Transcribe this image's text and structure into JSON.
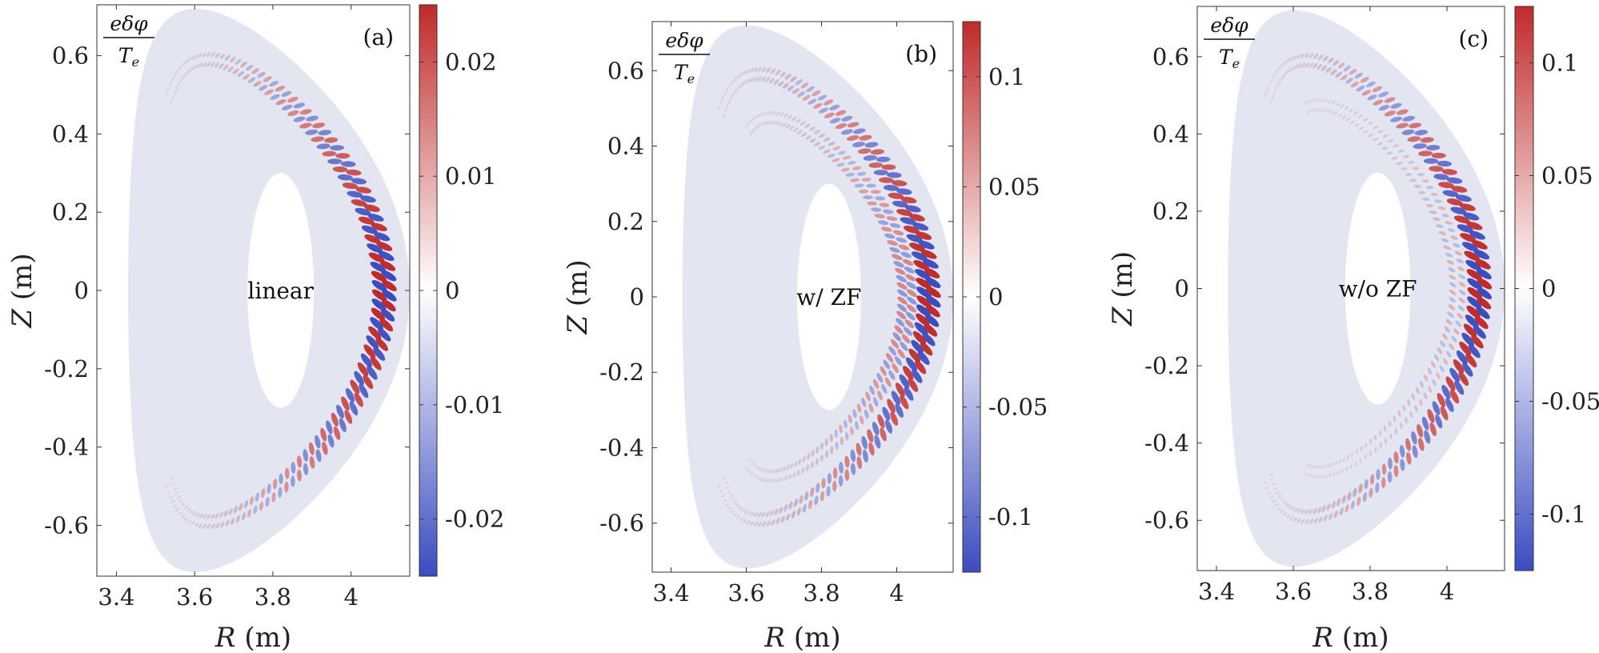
{
  "chart_data": [
    {
      "type": "heatmap",
      "panel": "(a)",
      "case_label": "linear",
      "quantity": {
        "numerator": "eδφ",
        "denominator": "T",
        "denominator_sub": "e"
      },
      "xlabel": {
        "var": "R",
        "unit": "(m)"
      },
      "ylabel": {
        "var": "Z",
        "unit": "(m)"
      },
      "xlim": [
        3.35,
        4.15
      ],
      "ylim": [
        -0.73,
        0.73
      ],
      "xticks": [
        3.4,
        3.6,
        3.8,
        4.0
      ],
      "xtick_labels": [
        "3.4",
        "3.6",
        "3.8",
        "4"
      ],
      "yticks": [
        0.6,
        0.4,
        0.2,
        0.0,
        -0.2,
        -0.4,
        -0.6
      ],
      "ytick_labels": [
        "0.6",
        "0.4",
        "0.2",
        "0",
        "-0.2",
        "-0.4",
        "-0.6"
      ],
      "colorbar": {
        "range": [
          -0.025,
          0.025
        ],
        "ticks": [
          0.02,
          0.01,
          0.0,
          -0.01,
          -0.02
        ],
        "tick_labels": [
          "0.02",
          "0.01",
          "0",
          "-0.01",
          "-0.02"
        ]
      },
      "colormap": {
        "negative": "#3b4cc0",
        "zero": "#ffffff",
        "positive": "#c02a2a",
        "background": "#e3e5f0"
      },
      "mode_structure": {
        "amplitude": 1.0,
        "inner_ring": 0.0
      }
    },
    {
      "type": "heatmap",
      "panel": "(b)",
      "case_label": "w/ ZF",
      "quantity": {
        "numerator": "eδφ",
        "denominator": "T",
        "denominator_sub": "e"
      },
      "xlabel": {
        "var": "R",
        "unit": "(m)"
      },
      "ylabel": {
        "var": "Z",
        "unit": "(m)"
      },
      "xlim": [
        3.35,
        4.15
      ],
      "ylim": [
        -0.73,
        0.73
      ],
      "xticks": [
        3.4,
        3.6,
        3.8,
        4.0
      ],
      "xtick_labels": [
        "3.4",
        "3.6",
        "3.8",
        "4"
      ],
      "yticks": [
        0.6,
        0.4,
        0.2,
        0.0,
        -0.2,
        -0.4,
        -0.6
      ],
      "ytick_labels": [
        "0.6",
        "0.4",
        "0.2",
        "0",
        "-0.2",
        "-0.4",
        "-0.6"
      ],
      "colorbar": {
        "range": [
          -0.125,
          0.125
        ],
        "ticks": [
          0.1,
          0.05,
          0.0,
          -0.05,
          -0.1
        ],
        "tick_labels": [
          "0.1",
          "0.05",
          "0",
          "-0.05",
          "-0.1"
        ]
      },
      "colormap": {
        "negative": "#3b4cc0",
        "zero": "#ffffff",
        "positive": "#c02a2a",
        "background": "#e3e5f0"
      },
      "mode_structure": {
        "amplitude": 1.0,
        "inner_ring": 0.6
      }
    },
    {
      "type": "heatmap",
      "panel": "(c)",
      "case_label": "w/o ZF",
      "quantity": {
        "numerator": "eδφ",
        "denominator": "T",
        "denominator_sub": "e"
      },
      "xlabel": {
        "var": "R",
        "unit": "(m)"
      },
      "ylabel": {
        "var": "Z",
        "unit": "(m)"
      },
      "xlim": [
        3.35,
        4.15
      ],
      "ylim": [
        -0.73,
        0.73
      ],
      "xticks": [
        3.4,
        3.6,
        3.8,
        4.0
      ],
      "xtick_labels": [
        "3.4",
        "3.6",
        "3.8",
        "4"
      ],
      "yticks": [
        0.6,
        0.4,
        0.2,
        0.0,
        -0.2,
        -0.4,
        -0.6
      ],
      "ytick_labels": [
        "0.6",
        "0.4",
        "0.2",
        "0",
        "-0.2",
        "-0.4",
        "-0.6"
      ],
      "colorbar": {
        "range": [
          -0.125,
          0.125
        ],
        "ticks": [
          0.1,
          0.05,
          0.0,
          -0.05,
          -0.1
        ],
        "tick_labels": [
          "0.1",
          "0.05",
          "0",
          "-0.05",
          "-0.1"
        ]
      },
      "colormap": {
        "negative": "#3b4cc0",
        "zero": "#ffffff",
        "positive": "#c02a2a",
        "background": "#e3e5f0"
      },
      "mode_structure": {
        "amplitude": 1.0,
        "inner_ring": 0.35
      }
    }
  ]
}
